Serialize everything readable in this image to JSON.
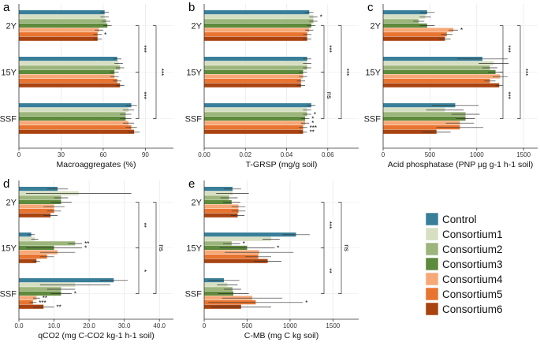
{
  "chart_data": {
    "type": "bar",
    "orientation": "horizontal",
    "groups": [
      "2Y",
      "15Y",
      "SSF"
    ],
    "series_names": [
      "Control",
      "Consortium1",
      "Consortium2",
      "Consortium3",
      "Consortium4",
      "Consortium5",
      "Consortium6"
    ],
    "colors": [
      "#3a7f99",
      "#d6dfc2",
      "#9cb57b",
      "#5e8a3c",
      "#f6a877",
      "#e87430",
      "#a9430f"
    ],
    "legend_position": "right",
    "panels": [
      {
        "label": "a",
        "xlabel": "Macroaggregates (%)",
        "xlim": [
          0,
          110
        ],
        "ticks": [
          0,
          30,
          60,
          90
        ],
        "values": [
          [
            61,
            61,
            62,
            63,
            57,
            56,
            56
          ],
          [
            70,
            71,
            72,
            68,
            68,
            70,
            72
          ],
          [
            80,
            78,
            76,
            76,
            78,
            80,
            82
          ]
        ],
        "errors": [
          [
            3,
            3,
            3,
            3,
            3,
            3,
            3
          ],
          [
            3,
            3,
            3,
            3,
            3,
            3,
            3
          ],
          [
            4,
            4,
            4,
            4,
            4,
            4,
            4
          ]
        ],
        "markers": [
          [
            "",
            "",
            "",
            "",
            "",
            "*",
            ""
          ],
          [
            "",
            "",
            "",
            "",
            "",
            "",
            ""
          ],
          [
            "",
            "",
            "",
            "",
            "",
            "",
            ""
          ]
        ],
        "brackets": [
          {
            "from": "2Y",
            "to": "15Y",
            "label": "***"
          },
          {
            "from": "15Y",
            "to": "SSF",
            "label": "***"
          },
          {
            "from": "2Y",
            "to": "SSF",
            "label": "***"
          }
        ]
      },
      {
        "label": "b",
        "xlabel": "T-GRSP (mg/g soil)",
        "xlim": [
          0,
          0.075
        ],
        "ticks": [
          0.0,
          0.02,
          0.04,
          0.06
        ],
        "values": [
          [
            0.051,
            0.053,
            0.053,
            0.052,
            0.051,
            0.05,
            0.05
          ],
          [
            0.05,
            0.05,
            0.05,
            0.048,
            0.048,
            0.047,
            0.047
          ],
          [
            0.052,
            0.05,
            0.05,
            0.049,
            0.049,
            0.048,
            0.048
          ]
        ],
        "errors": [
          [
            0.002,
            0.002,
            0.002,
            0.002,
            0.002,
            0.002,
            0.002
          ],
          [
            0.002,
            0.002,
            0.002,
            0.002,
            0.002,
            0.002,
            0.002
          ],
          [
            0.002,
            0.002,
            0.002,
            0.002,
            0.002,
            0.002,
            0.002
          ]
        ],
        "markers": [
          [
            "",
            "*",
            "",
            "",
            "",
            "",
            ""
          ],
          [
            "",
            "",
            "",
            "",
            "",
            "",
            ""
          ],
          [
            "",
            "",
            "*",
            "*",
            "*",
            "***",
            "**"
          ]
        ],
        "brackets": [
          {
            "from": "2Y",
            "to": "15Y",
            "label": "***"
          },
          {
            "from": "15Y",
            "to": "SSF",
            "label": "ns"
          },
          {
            "from": "2Y",
            "to": "SSF",
            "label": "***"
          }
        ]
      },
      {
        "label": "c",
        "xlabel": "Acid phosphatase (PNP µg g-1 h-1 soil)",
        "xlim": [
          0,
          1650
        ],
        "ticks": [
          0,
          500,
          1000,
          1500
        ],
        "values": [
          [
            470,
            450,
            380,
            470,
            750,
            680,
            660
          ],
          [
            1060,
            1180,
            1140,
            1200,
            1250,
            1140,
            1240
          ],
          [
            770,
            660,
            880,
            880,
            820,
            820,
            570
          ]
        ],
        "errors": [
          [
            80,
            60,
            60,
            80,
            50,
            60,
            60
          ],
          [
            270,
            160,
            80,
            80,
            80,
            60,
            40
          ],
          [
            250,
            200,
            150,
            100,
            150,
            250,
            150
          ]
        ],
        "markers": [
          [
            "",
            "",
            "",
            "",
            "*",
            "",
            ""
          ],
          [
            "",
            "",
            "",
            "",
            "",
            "",
            ""
          ],
          [
            "",
            "",
            "",
            "",
            "",
            "",
            ""
          ]
        ],
        "brackets": [
          {
            "from": "2Y",
            "to": "15Y",
            "label": "***"
          },
          {
            "from": "15Y",
            "to": "SSF",
            "label": "***"
          },
          {
            "from": "2Y",
            "to": "SSF",
            "label": "***"
          }
        ]
      },
      {
        "label": "d",
        "xlabel": "qCO2 (mg C-CO2 kg-1 h-1 soil)",
        "xlim": [
          0,
          44
        ],
        "ticks": [
          0.0,
          10.0,
          20.0,
          30.0,
          40.0
        ],
        "values": [
          [
            11,
            17,
            12,
            12,
            10,
            10,
            9
          ],
          [
            3.5,
            4.5,
            16,
            10,
            11,
            8,
            5
          ],
          [
            27,
            16,
            12,
            12,
            5,
            4,
            7
          ]
        ],
        "errors": [
          [
            3,
            15,
            2,
            3,
            3,
            2,
            2
          ],
          [
            1,
            1,
            2,
            8,
            5,
            2,
            1
          ],
          [
            4,
            10,
            4,
            3,
            1,
            1,
            3
          ]
        ],
        "markers": [
          [
            "",
            "",
            "",
            "",
            "",
            "",
            ""
          ],
          [
            "",
            "",
            "**",
            "*",
            "",
            "",
            ""
          ],
          [
            "",
            "",
            "",
            "*",
            "**",
            "***",
            "**"
          ]
        ],
        "brackets": [
          {
            "from": "2Y",
            "to": "15Y",
            "label": "**"
          },
          {
            "from": "15Y",
            "to": "SSF",
            "label": "*"
          },
          {
            "from": "2Y",
            "to": "SSF",
            "label": "ns"
          }
        ]
      },
      {
        "label": "e",
        "xlabel": "C-MB (mg C kg soil)",
        "xlim": [
          0,
          1800
        ],
        "ticks": [
          0,
          500,
          1000,
          1500
        ],
        "values": [
          [
            330,
            330,
            290,
            320,
            400,
            400,
            390
          ],
          [
            1070,
            780,
            320,
            500,
            640,
            630,
            740
          ],
          [
            230,
            270,
            330,
            340,
            560,
            600,
            430
          ]
        ],
        "errors": [
          [
            100,
            190,
            100,
            100,
            80,
            80,
            80
          ],
          [
            160,
            100,
            100,
            320,
            400,
            150,
            160
          ],
          [
            180,
            120,
            100,
            180,
            350,
            550,
            350
          ]
        ],
        "markers": [
          [
            "",
            "",
            "",
            "",
            "",
            "",
            ""
          ],
          [
            "",
            "",
            "*",
            "*",
            "",
            "",
            ""
          ],
          [
            "",
            "",
            "",
            "",
            "",
            "*",
            ""
          ]
        ],
        "brackets": [
          {
            "from": "2Y",
            "to": "15Y",
            "label": "***"
          },
          {
            "from": "15Y",
            "to": "SSF",
            "label": "**"
          },
          {
            "from": "2Y",
            "to": "SSF",
            "label": "ns"
          }
        ]
      }
    ]
  }
}
